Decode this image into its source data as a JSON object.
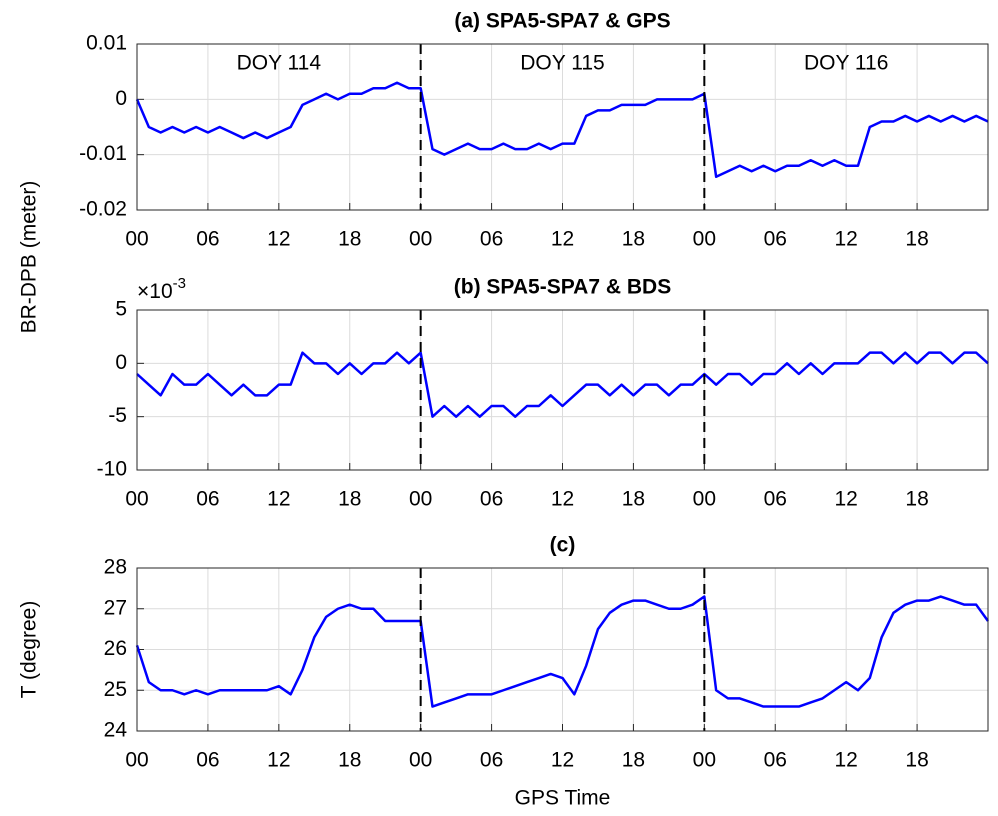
{
  "chart_data": [
    {
      "type": "line",
      "title": "(a) SPA5-SPA7 & GPS",
      "ylabel": "BR-DPB (meter)",
      "annotations": [
        "DOY 114",
        "DOY 115",
        "DOY 116"
      ],
      "vlines": [
        24,
        48
      ],
      "grid": true,
      "xlim": [
        0,
        72
      ],
      "xticks": [
        {
          "value": 0,
          "label": "00"
        },
        {
          "value": 6,
          "label": "06"
        },
        {
          "value": 12,
          "label": "12"
        },
        {
          "value": 18,
          "label": "18"
        },
        {
          "value": 24,
          "label": "00"
        },
        {
          "value": 30,
          "label": "06"
        },
        {
          "value": 36,
          "label": "12"
        },
        {
          "value": 42,
          "label": "18"
        },
        {
          "value": 48,
          "label": "00"
        },
        {
          "value": 54,
          "label": "06"
        },
        {
          "value": 60,
          "label": "12"
        },
        {
          "value": 66,
          "label": "18"
        }
      ],
      "ylim": [
        -0.02,
        0.01
      ],
      "yticks": [
        -0.02,
        -0.01,
        0,
        0.01
      ],
      "x": [
        0,
        1,
        2,
        3,
        4,
        5,
        6,
        7,
        8,
        9,
        10,
        11,
        12,
        13,
        14,
        15,
        16,
        17,
        18,
        19,
        20,
        21,
        22,
        23,
        24,
        25,
        26,
        27,
        28,
        29,
        30,
        31,
        32,
        33,
        34,
        35,
        36,
        37,
        38,
        39,
        40,
        41,
        42,
        43,
        44,
        45,
        46,
        47,
        48,
        49,
        50,
        51,
        52,
        53,
        54,
        55,
        56,
        57,
        58,
        59,
        60,
        61,
        62,
        63,
        64,
        65,
        66,
        67,
        68,
        69,
        70,
        71,
        72
      ],
      "series": [
        {
          "name": "SPA5-SPA7 & GPS",
          "color": "#0000ff",
          "values": [
            0,
            -0.005,
            -0.006,
            -0.005,
            -0.006,
            -0.005,
            -0.006,
            -0.005,
            -0.006,
            -0.007,
            -0.006,
            -0.007,
            -0.006,
            -0.005,
            -0.001,
            0,
            0.001,
            0,
            0.001,
            0.001,
            0.002,
            0.002,
            0.003,
            0.002,
            0.002,
            -0.009,
            -0.01,
            -0.009,
            -0.008,
            -0.009,
            -0.009,
            -0.008,
            -0.009,
            -0.009,
            -0.008,
            -0.009,
            -0.008,
            -0.008,
            -0.003,
            -0.002,
            -0.002,
            -0.001,
            -0.001,
            -0.001,
            0,
            0,
            0,
            0,
            0.001,
            -0.014,
            -0.013,
            -0.012,
            -0.013,
            -0.012,
            -0.013,
            -0.012,
            -0.012,
            -0.011,
            -0.012,
            -0.011,
            -0.012,
            -0.012,
            -0.005,
            -0.004,
            -0.004,
            -0.003,
            -0.004,
            -0.003,
            -0.004,
            -0.003,
            -0.004,
            -0.003,
            -0.004
          ]
        }
      ]
    },
    {
      "type": "line",
      "title": "(b) SPA5-SPA7 & BDS",
      "axis_exponent": {
        "base": "×10",
        "power": "-3"
      },
      "vlines": [
        24,
        48
      ],
      "grid": true,
      "xlim": [
        0,
        72
      ],
      "xticks": [
        {
          "value": 0,
          "label": "00"
        },
        {
          "value": 6,
          "label": "06"
        },
        {
          "value": 12,
          "label": "12"
        },
        {
          "value": 18,
          "label": "18"
        },
        {
          "value": 24,
          "label": "00"
        },
        {
          "value": 30,
          "label": "06"
        },
        {
          "value": 36,
          "label": "12"
        },
        {
          "value": 42,
          "label": "18"
        },
        {
          "value": 48,
          "label": "00"
        },
        {
          "value": 54,
          "label": "06"
        },
        {
          "value": 60,
          "label": "12"
        },
        {
          "value": 66,
          "label": "18"
        }
      ],
      "ylim": [
        -10,
        5
      ],
      "yticks": [
        -10,
        -5,
        0,
        5
      ],
      "x": [
        0,
        1,
        2,
        3,
        4,
        5,
        6,
        7,
        8,
        9,
        10,
        11,
        12,
        13,
        14,
        15,
        16,
        17,
        18,
        19,
        20,
        21,
        22,
        23,
        24,
        25,
        26,
        27,
        28,
        29,
        30,
        31,
        32,
        33,
        34,
        35,
        36,
        37,
        38,
        39,
        40,
        41,
        42,
        43,
        44,
        45,
        46,
        47,
        48,
        49,
        50,
        51,
        52,
        53,
        54,
        55,
        56,
        57,
        58,
        59,
        60,
        61,
        62,
        63,
        64,
        65,
        66,
        67,
        68,
        69,
        70,
        71,
        72
      ],
      "series": [
        {
          "name": "SPA5-SPA7 & BDS",
          "color": "#0000ff",
          "values": [
            -1,
            -2,
            -3,
            -1,
            -2,
            -2,
            -1,
            -2,
            -3,
            -2,
            -3,
            -3,
            -2,
            -2,
            1,
            0,
            0,
            -1,
            0,
            -1,
            0,
            0,
            1,
            0,
            1,
            -5,
            -4,
            -5,
            -4,
            -5,
            -4,
            -4,
            -5,
            -4,
            -4,
            -3,
            -4,
            -3,
            -2,
            -2,
            -3,
            -2,
            -3,
            -2,
            -2,
            -3,
            -2,
            -2,
            -1,
            -2,
            -1,
            -1,
            -2,
            -1,
            -1,
            0,
            -1,
            0,
            -1,
            0,
            0,
            0,
            1,
            1,
            0,
            1,
            0,
            1,
            1,
            0,
            1,
            1,
            0
          ]
        }
      ]
    },
    {
      "type": "line",
      "title": "(c)",
      "ylabel": "T (degree)",
      "xlabel": "GPS Time",
      "vlines": [
        24,
        48
      ],
      "grid": true,
      "xlim": [
        0,
        72
      ],
      "xticks": [
        {
          "value": 0,
          "label": "00"
        },
        {
          "value": 6,
          "label": "06"
        },
        {
          "value": 12,
          "label": "12"
        },
        {
          "value": 18,
          "label": "18"
        },
        {
          "value": 24,
          "label": "00"
        },
        {
          "value": 30,
          "label": "06"
        },
        {
          "value": 36,
          "label": "12"
        },
        {
          "value": 42,
          "label": "18"
        },
        {
          "value": 48,
          "label": "00"
        },
        {
          "value": 54,
          "label": "06"
        },
        {
          "value": 60,
          "label": "12"
        },
        {
          "value": 66,
          "label": "18"
        }
      ],
      "ylim": [
        24,
        28
      ],
      "yticks": [
        24,
        25,
        26,
        27,
        28
      ],
      "x": [
        0,
        1,
        2,
        3,
        4,
        5,
        6,
        7,
        8,
        9,
        10,
        11,
        12,
        13,
        14,
        15,
        16,
        17,
        18,
        19,
        20,
        21,
        22,
        23,
        24,
        25,
        26,
        27,
        28,
        29,
        30,
        31,
        32,
        33,
        34,
        35,
        36,
        37,
        38,
        39,
        40,
        41,
        42,
        43,
        44,
        45,
        46,
        47,
        48,
        49,
        50,
        51,
        52,
        53,
        54,
        55,
        56,
        57,
        58,
        59,
        60,
        61,
        62,
        63,
        64,
        65,
        66,
        67,
        68,
        69,
        70,
        71,
        72
      ],
      "series": [
        {
          "name": "T",
          "color": "#0000ff",
          "values": [
            26.1,
            25.2,
            25,
            25,
            24.9,
            25,
            24.9,
            25,
            25,
            25,
            25,
            25,
            25.1,
            24.9,
            25.5,
            26.3,
            26.8,
            27,
            27.1,
            27,
            27,
            26.7,
            26.7,
            26.7,
            26.7,
            24.6,
            24.7,
            24.8,
            24.9,
            24.9,
            24.9,
            25,
            25.1,
            25.2,
            25.3,
            25.4,
            25.3,
            24.9,
            25.6,
            26.5,
            26.9,
            27.1,
            27.2,
            27.2,
            27.1,
            27,
            27,
            27.1,
            27.3,
            25,
            24.8,
            24.8,
            24.7,
            24.6,
            24.6,
            24.6,
            24.6,
            24.7,
            24.8,
            25,
            25.2,
            25,
            25.3,
            26.3,
            26.9,
            27.1,
            27.2,
            27.2,
            27.3,
            27.2,
            27.1,
            27.1,
            26.7
          ]
        }
      ]
    }
  ]
}
